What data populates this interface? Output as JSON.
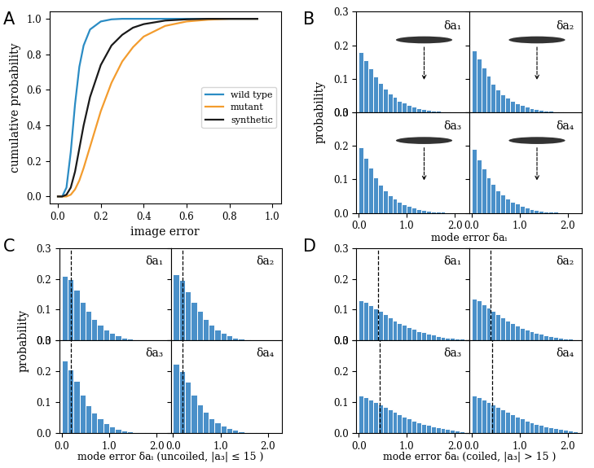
{
  "chart_data": [
    {
      "type": "line",
      "annotations": [
        "A"
      ],
      "x_label": "image error",
      "y_label": "cumulative probability",
      "x": [
        0.0,
        0.02,
        0.04,
        0.06,
        0.08,
        0.1,
        0.12,
        0.15,
        0.2,
        0.25,
        0.3,
        0.35,
        0.4,
        0.5,
        0.6,
        0.7,
        0.8,
        0.93
      ],
      "series": [
        {
          "name": "wild type",
          "color": "#2b8cc4",
          "values": [
            0.0,
            0.0,
            0.05,
            0.25,
            0.52,
            0.73,
            0.85,
            0.94,
            0.985,
            0.997,
            1.0,
            1.0,
            1.0,
            1.0,
            1.0,
            1.0,
            1.0,
            1.0
          ]
        },
        {
          "name": "mutant",
          "color": "#f39c2e",
          "values": [
            0.0,
            0.0,
            0.0,
            0.01,
            0.04,
            0.09,
            0.16,
            0.28,
            0.48,
            0.64,
            0.76,
            0.84,
            0.9,
            0.96,
            0.985,
            0.995,
            1.0,
            1.0
          ]
        },
        {
          "name": "synthetic",
          "color": "#1a1a1a",
          "values": [
            0.0,
            0.0,
            0.01,
            0.05,
            0.14,
            0.27,
            0.4,
            0.56,
            0.74,
            0.85,
            0.91,
            0.95,
            0.97,
            0.99,
            0.997,
            1.0,
            1.0,
            1.0
          ]
        }
      ],
      "xlim": [
        -0.04,
        1.04
      ],
      "ylim": [
        -0.04,
        1.04
      ],
      "xticks": [
        {
          "value": 0,
          "label": "0.0"
        },
        0.2,
        0.4,
        0.6,
        0.8,
        {
          "value": 1,
          "label": "1.0"
        }
      ],
      "yticks": [
        {
          "value": 0,
          "label": "0.0"
        },
        0.2,
        0.4,
        0.6,
        0.8,
        {
          "value": 1,
          "label": "1.0"
        }
      ],
      "legend": "center right"
    },
    {
      "type": "histogram",
      "annotations": [
        "B"
      ],
      "title": "δa₁",
      "y_label": "probability",
      "tick_labels": "y",
      "color": "#4a90c9",
      "bins": [
        0.0,
        0.1,
        0.2,
        0.3,
        0.4,
        0.5,
        0.6,
        0.7,
        0.8,
        0.9,
        1.0,
        1.1,
        1.2,
        1.3,
        1.4,
        1.5,
        1.6,
        1.7,
        1.8,
        1.9,
        2.0
      ],
      "values": [
        0.18,
        0.155,
        0.13,
        0.107,
        0.087,
        0.07,
        0.056,
        0.045,
        0.035,
        0.028,
        0.022,
        0.017,
        0.013,
        0.01,
        0.008,
        0.006,
        0.004,
        0.003,
        0.002,
        0.001
      ],
      "xlim": [
        -0.05,
        2.3
      ],
      "ylim": [
        0,
        0.3
      ],
      "xticks": [
        {
          "value": 0,
          "label": "0.0"
        },
        {
          "value": 1,
          "label": "1.0"
        },
        {
          "value": 2,
          "label": "2.0"
        }
      ],
      "yticks": [
        {
          "value": 0,
          "label": "0.0"
        },
        0.1,
        0.2,
        0.3
      ]
    },
    {
      "type": "histogram",
      "title": "δa₂",
      "tick_labels": false,
      "color": "#4a90c9",
      "bins": [
        0.0,
        0.1,
        0.2,
        0.3,
        0.4,
        0.5,
        0.6,
        0.7,
        0.8,
        0.9,
        1.0,
        1.1,
        1.2,
        1.3,
        1.4,
        1.5,
        1.6,
        1.7,
        1.8,
        1.9,
        2.0
      ],
      "values": [
        0.185,
        0.16,
        0.133,
        0.108,
        0.086,
        0.068,
        0.054,
        0.043,
        0.034,
        0.027,
        0.021,
        0.016,
        0.012,
        0.009,
        0.007,
        0.005,
        0.004,
        0.003,
        0.002,
        0.001
      ],
      "xlim": [
        -0.05,
        2.3
      ],
      "ylim": [
        0,
        0.3
      ],
      "xticks": [
        {
          "value": 0,
          "label": "0.0"
        },
        {
          "value": 1,
          "label": "1.0"
        },
        {
          "value": 2,
          "label": "2.0"
        }
      ],
      "yticks": [
        {
          "value": 0,
          "label": "0.0"
        },
        0.1,
        0.2,
        0.3
      ]
    },
    {
      "type": "histogram",
      "title": "δa₃",
      "x_label": "mode error δaᵢ",
      "color": "#4a90c9",
      "bins": [
        0.0,
        0.1,
        0.2,
        0.3,
        0.4,
        0.5,
        0.6,
        0.7,
        0.8,
        0.9,
        1.0,
        1.1,
        1.2,
        1.3,
        1.4,
        1.5,
        1.6,
        1.7,
        1.8,
        1.9,
        2.0
      ],
      "values": [
        0.195,
        0.165,
        0.135,
        0.107,
        0.085,
        0.067,
        0.053,
        0.042,
        0.033,
        0.026,
        0.02,
        0.015,
        0.011,
        0.008,
        0.006,
        0.005,
        0.004,
        0.003,
        0.002,
        0.001
      ],
      "xlim": [
        -0.05,
        2.3
      ],
      "ylim": [
        0,
        0.3
      ],
      "xticks": [
        {
          "value": 0,
          "label": "0.0"
        },
        {
          "value": 1,
          "label": "1.0"
        },
        {
          "value": 2,
          "label": "2.0"
        }
      ],
      "yticks": [
        {
          "value": 0,
          "label": "0.0"
        },
        0.1,
        0.2,
        0.3
      ]
    },
    {
      "type": "histogram",
      "title": "δa₄",
      "tick_labels": "x",
      "color": "#4a90c9",
      "bins": [
        0.0,
        0.1,
        0.2,
        0.3,
        0.4,
        0.5,
        0.6,
        0.7,
        0.8,
        0.9,
        1.0,
        1.1,
        1.2,
        1.3,
        1.4,
        1.5,
        1.6,
        1.7,
        1.8,
        1.9,
        2.0
      ],
      "values": [
        0.19,
        0.16,
        0.133,
        0.107,
        0.086,
        0.068,
        0.054,
        0.043,
        0.034,
        0.027,
        0.021,
        0.016,
        0.012,
        0.009,
        0.007,
        0.005,
        0.004,
        0.003,
        0.002,
        0.001
      ],
      "xlim": [
        -0.05,
        2.3
      ],
      "ylim": [
        0,
        0.3
      ],
      "xticks": [
        {
          "value": 0,
          "label": "0.0"
        },
        {
          "value": 1,
          "label": "1.0"
        },
        {
          "value": 2,
          "label": "2.0"
        }
      ],
      "yticks": [
        {
          "value": 0,
          "label": "0.0"
        },
        0.1,
        0.2,
        0.3
      ]
    },
    {
      "type": "histogram",
      "annotations": [
        "C"
      ],
      "title": "δa₁",
      "y_label": "probability",
      "tick_labels": "y",
      "color": "#4a90c9",
      "reference_line": 0.2,
      "bins": [
        0.0,
        0.125,
        0.25,
        0.375,
        0.5,
        0.625,
        0.75,
        0.875,
        1.0,
        1.125,
        1.25,
        1.375,
        1.5,
        1.625,
        1.75,
        1.875,
        2.0
      ],
      "values": [
        0.21,
        0.2,
        0.165,
        0.125,
        0.095,
        0.07,
        0.05,
        0.035,
        0.024,
        0.016,
        0.01,
        0.006,
        0.004,
        0.002,
        0.001,
        0.001
      ],
      "xlim": [
        -0.05,
        2.3
      ],
      "ylim": [
        0,
        0.3
      ],
      "xticks": [
        {
          "value": 0,
          "label": "0.0"
        },
        {
          "value": 1,
          "label": "1.0"
        },
        {
          "value": 2,
          "label": "2.0"
        }
      ],
      "yticks": [
        {
          "value": 0,
          "label": "0.0"
        },
        0.1,
        0.2,
        0.3
      ]
    },
    {
      "type": "histogram",
      "title": "δa₂",
      "tick_labels": false,
      "color": "#4a90c9",
      "reference_line": 0.2,
      "bins": [
        0.0,
        0.125,
        0.25,
        0.375,
        0.5,
        0.625,
        0.75,
        0.875,
        1.0,
        1.125,
        1.25,
        1.375,
        1.5,
        1.625,
        1.75,
        1.875,
        2.0
      ],
      "values": [
        0.215,
        0.195,
        0.16,
        0.125,
        0.095,
        0.07,
        0.05,
        0.036,
        0.025,
        0.016,
        0.01,
        0.006,
        0.004,
        0.002,
        0.001,
        0.001
      ],
      "xlim": [
        -0.05,
        2.3
      ],
      "ylim": [
        0,
        0.3
      ],
      "xticks": [
        {
          "value": 0,
          "label": "0.0"
        },
        {
          "value": 1,
          "label": "1.0"
        },
        {
          "value": 2,
          "label": "2.0"
        }
      ],
      "yticks": [
        {
          "value": 0,
          "label": "0.0"
        },
        0.1,
        0.2,
        0.3
      ]
    },
    {
      "type": "histogram",
      "title": "δa₃",
      "x_label": "mode error δaᵢ (uncoiled, |a₃| ≤ 15 )",
      "color": "#4a90c9",
      "reference_line": 0.19,
      "bins": [
        0.0,
        0.125,
        0.25,
        0.375,
        0.5,
        0.625,
        0.75,
        0.875,
        1.0,
        1.125,
        1.25,
        1.375,
        1.5,
        1.625,
        1.75,
        1.875,
        2.0
      ],
      "values": [
        0.235,
        0.205,
        0.17,
        0.125,
        0.09,
        0.065,
        0.046,
        0.032,
        0.021,
        0.013,
        0.008,
        0.005,
        0.003,
        0.002,
        0.001,
        0.0
      ],
      "xlim": [
        -0.05,
        2.3
      ],
      "ylim": [
        0,
        0.3
      ],
      "xticks": [
        {
          "value": 0,
          "label": "0.0"
        },
        {
          "value": 1,
          "label": "1.0"
        },
        {
          "value": 2,
          "label": "2.0"
        }
      ],
      "yticks": [
        {
          "value": 0,
          "label": "0.0"
        },
        0.1,
        0.2,
        0.3
      ]
    },
    {
      "type": "histogram",
      "title": "δa₄",
      "tick_labels": "x",
      "color": "#4a90c9",
      "reference_line": 0.2,
      "bins": [
        0.0,
        0.125,
        0.25,
        0.375,
        0.5,
        0.625,
        0.75,
        0.875,
        1.0,
        1.125,
        1.25,
        1.375,
        1.5,
        1.625,
        1.75,
        1.875,
        2.0
      ],
      "values": [
        0.225,
        0.2,
        0.165,
        0.125,
        0.092,
        0.068,
        0.048,
        0.034,
        0.023,
        0.015,
        0.009,
        0.006,
        0.003,
        0.002,
        0.001,
        0.001
      ],
      "xlim": [
        -0.05,
        2.3
      ],
      "ylim": [
        0,
        0.3
      ],
      "xticks": [
        {
          "value": 0,
          "label": "0.0"
        },
        {
          "value": 1,
          "label": "1.0"
        },
        {
          "value": 2,
          "label": "2.0"
        }
      ],
      "yticks": [
        {
          "value": 0,
          "label": "0.0"
        },
        0.1,
        0.2,
        0.3
      ]
    },
    {
      "type": "histogram",
      "annotations": [
        "D"
      ],
      "title": "δa₁",
      "tick_labels": "y",
      "color": "#4a90c9",
      "reference_line": 0.4,
      "bins": [
        0.0,
        0.1,
        0.2,
        0.3,
        0.4,
        0.5,
        0.6,
        0.7,
        0.8,
        0.9,
        1.0,
        1.1,
        1.2,
        1.3,
        1.4,
        1.5,
        1.6,
        1.7,
        1.8,
        1.9,
        2.0,
        2.1,
        2.2
      ],
      "values": [
        0.13,
        0.125,
        0.115,
        0.105,
        0.095,
        0.085,
        0.075,
        0.065,
        0.057,
        0.05,
        0.043,
        0.037,
        0.031,
        0.026,
        0.022,
        0.018,
        0.015,
        0.012,
        0.01,
        0.008,
        0.006,
        0.005
      ],
      "xlim": [
        -0.05,
        2.3
      ],
      "ylim": [
        0,
        0.3
      ],
      "xticks": [
        {
          "value": 0,
          "label": "0.0"
        },
        {
          "value": 1,
          "label": "1.0"
        },
        {
          "value": 2,
          "label": "2.0"
        }
      ],
      "yticks": [
        {
          "value": 0,
          "label": "0.0"
        },
        0.1,
        0.2,
        0.3
      ]
    },
    {
      "type": "histogram",
      "title": "δa₂",
      "tick_labels": false,
      "color": "#4a90c9",
      "reference_line": 0.4,
      "bins": [
        0.0,
        0.1,
        0.2,
        0.3,
        0.4,
        0.5,
        0.6,
        0.7,
        0.8,
        0.9,
        1.0,
        1.1,
        1.2,
        1.3,
        1.4,
        1.5,
        1.6,
        1.7,
        1.8,
        1.9,
        2.0,
        2.1,
        2.2
      ],
      "values": [
        0.135,
        0.13,
        0.118,
        0.107,
        0.096,
        0.085,
        0.074,
        0.064,
        0.056,
        0.048,
        0.041,
        0.035,
        0.03,
        0.025,
        0.021,
        0.017,
        0.014,
        0.011,
        0.009,
        0.007,
        0.005,
        0.004
      ],
      "xlim": [
        -0.05,
        2.3
      ],
      "ylim": [
        0,
        0.3
      ],
      "xticks": [
        {
          "value": 0,
          "label": "0.0"
        },
        {
          "value": 1,
          "label": "1.0"
        },
        {
          "value": 2,
          "label": "2.0"
        }
      ],
      "yticks": [
        {
          "value": 0,
          "label": "0.0"
        },
        0.1,
        0.2,
        0.3
      ]
    },
    {
      "type": "histogram",
      "title": "δa₃",
      "x_label": "mode error δaᵢ (coiled, |a₃| > 15 )",
      "color": "#4a90c9",
      "reference_line": 0.43,
      "bins": [
        0.0,
        0.1,
        0.2,
        0.3,
        0.4,
        0.5,
        0.6,
        0.7,
        0.8,
        0.9,
        1.0,
        1.1,
        1.2,
        1.3,
        1.4,
        1.5,
        1.6,
        1.7,
        1.8,
        1.9,
        2.0,
        2.1,
        2.2
      ],
      "values": [
        0.12,
        0.115,
        0.108,
        0.1,
        0.092,
        0.084,
        0.076,
        0.068,
        0.06,
        0.053,
        0.046,
        0.04,
        0.035,
        0.03,
        0.026,
        0.022,
        0.018,
        0.015,
        0.012,
        0.01,
        0.008,
        0.006
      ],
      "xlim": [
        -0.05,
        2.3
      ],
      "ylim": [
        0,
        0.3
      ],
      "xticks": [
        {
          "value": 0,
          "label": "0.0"
        },
        {
          "value": 1,
          "label": "1.0"
        },
        {
          "value": 2,
          "label": "2.0"
        }
      ],
      "yticks": [
        {
          "value": 0,
          "label": "0.0"
        },
        0.1,
        0.2,
        0.3
      ]
    },
    {
      "type": "histogram",
      "title": "δa₄",
      "tick_labels": "x",
      "color": "#4a90c9",
      "reference_line": 0.43,
      "bins": [
        0.0,
        0.1,
        0.2,
        0.3,
        0.4,
        0.5,
        0.6,
        0.7,
        0.8,
        0.9,
        1.0,
        1.1,
        1.2,
        1.3,
        1.4,
        1.5,
        1.6,
        1.7,
        1.8,
        1.9,
        2.0,
        2.1,
        2.2
      ],
      "values": [
        0.12,
        0.115,
        0.108,
        0.1,
        0.092,
        0.084,
        0.076,
        0.068,
        0.06,
        0.053,
        0.046,
        0.04,
        0.035,
        0.03,
        0.026,
        0.022,
        0.018,
        0.015,
        0.012,
        0.01,
        0.008,
        0.006
      ],
      "xlim": [
        -0.05,
        2.3
      ],
      "ylim": [
        0,
        0.3
      ],
      "xticks": [
        {
          "value": 0,
          "label": "0.0"
        },
        {
          "value": 1,
          "label": "1.0"
        },
        {
          "value": 2,
          "label": "2.0"
        }
      ],
      "yticks": [
        {
          "value": 0,
          "label": "0.0"
        },
        0.1,
        0.2,
        0.3
      ]
    }
  ]
}
